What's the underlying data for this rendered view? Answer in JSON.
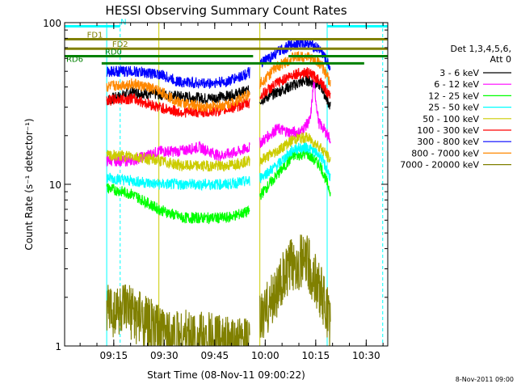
{
  "chart_data": {
    "type": "line",
    "title": "HESSI Observing Summary Count Rates",
    "xlabel": "Start Time (08-Nov-11 09:00:22)",
    "ylabel": "Count Rate (s⁻¹ detector⁻¹)",
    "yscale": "log",
    "ylim": [
      1,
      100
    ],
    "xlim_minutes": [
      0,
      96
    ],
    "y_ticks": [
      {
        "v": 1,
        "label": "1"
      },
      {
        "v": 10,
        "label": "10"
      },
      {
        "v": 100,
        "label": "100"
      }
    ],
    "x_ticks": [
      {
        "m": 14.6,
        "label": "09:15"
      },
      {
        "m": 29.6,
        "label": "09:30"
      },
      {
        "m": 44.6,
        "label": "09:45"
      },
      {
        "m": 59.6,
        "label": "10:00"
      },
      {
        "m": 74.6,
        "label": "10:15"
      },
      {
        "m": 89.6,
        "label": "10:30"
      }
    ],
    "grid": false,
    "legend_position": "right",
    "legend_header": [
      "Det 1,3,4,5,6,",
      "Att 0"
    ],
    "footer": "8-Nov-2011 09:00",
    "segments": [
      [
        12.5,
        55.0
      ],
      [
        58.0,
        79.0
      ]
    ],
    "series": [
      {
        "name": "3 - 6 keV",
        "color": "#000000",
        "values": [
          {
            "x": 12.5,
            "y": 33
          },
          {
            "x": 20,
            "y": 37
          },
          {
            "x": 28,
            "y": 36
          },
          {
            "x": 34,
            "y": 35
          },
          {
            "x": 42,
            "y": 34
          },
          {
            "x": 48,
            "y": 35
          },
          {
            "x": 55,
            "y": 38
          },
          {
            "x": 58,
            "y": 33
          },
          {
            "x": 63,
            "y": 37
          },
          {
            "x": 68,
            "y": 41
          },
          {
            "x": 72,
            "y": 44
          },
          {
            "x": 76,
            "y": 41
          },
          {
            "x": 79,
            "y": 30
          }
        ]
      },
      {
        "name": "6 - 12 keV",
        "color": "#ff00ff",
        "values": [
          {
            "x": 12.5,
            "y": 14
          },
          {
            "x": 20,
            "y": 14
          },
          {
            "x": 28,
            "y": 16
          },
          {
            "x": 34,
            "y": 16
          },
          {
            "x": 40,
            "y": 17
          },
          {
            "x": 46,
            "y": 15
          },
          {
            "x": 52,
            "y": 16
          },
          {
            "x": 55,
            "y": 17
          },
          {
            "x": 58,
            "y": 18
          },
          {
            "x": 63,
            "y": 22
          },
          {
            "x": 67,
            "y": 21
          },
          {
            "x": 70,
            "y": 21
          },
          {
            "x": 73,
            "y": 25
          },
          {
            "x": 74,
            "y": 43
          },
          {
            "x": 75.5,
            "y": 24
          },
          {
            "x": 77,
            "y": 22
          },
          {
            "x": 79,
            "y": 19
          }
        ]
      },
      {
        "name": "12 - 25 keV",
        "color": "#00ff00",
        "values": [
          {
            "x": 12.5,
            "y": 9.5
          },
          {
            "x": 20,
            "y": 8.7
          },
          {
            "x": 28,
            "y": 7
          },
          {
            "x": 35,
            "y": 6.2
          },
          {
            "x": 42,
            "y": 6.2
          },
          {
            "x": 48,
            "y": 6.2
          },
          {
            "x": 55,
            "y": 6.8
          },
          {
            "x": 58,
            "y": 8.5
          },
          {
            "x": 64,
            "y": 12
          },
          {
            "x": 68,
            "y": 15
          },
          {
            "x": 72,
            "y": 15.5
          },
          {
            "x": 76,
            "y": 13
          },
          {
            "x": 79,
            "y": 9
          }
        ]
      },
      {
        "name": "25 - 50 keV",
        "color": "#00ffff",
        "values": [
          {
            "x": 12.5,
            "y": 11
          },
          {
            "x": 20,
            "y": 10.5
          },
          {
            "x": 28,
            "y": 10
          },
          {
            "x": 35,
            "y": 10
          },
          {
            "x": 42,
            "y": 10
          },
          {
            "x": 48,
            "y": 10
          },
          {
            "x": 55,
            "y": 10.5
          },
          {
            "x": 58,
            "y": 11
          },
          {
            "x": 63,
            "y": 13
          },
          {
            "x": 68,
            "y": 16.5
          },
          {
            "x": 72,
            "y": 17
          },
          {
            "x": 76,
            "y": 15
          },
          {
            "x": 79,
            "y": 11
          }
        ]
      },
      {
        "name": "50 - 100 keV",
        "color": "#cccc00",
        "values": [
          {
            "x": 12.5,
            "y": 15
          },
          {
            "x": 20,
            "y": 15
          },
          {
            "x": 28,
            "y": 14
          },
          {
            "x": 35,
            "y": 13
          },
          {
            "x": 42,
            "y": 13
          },
          {
            "x": 48,
            "y": 13
          },
          {
            "x": 55,
            "y": 14
          },
          {
            "x": 58,
            "y": 14
          },
          {
            "x": 63,
            "y": 16
          },
          {
            "x": 68,
            "y": 19
          },
          {
            "x": 72,
            "y": 19.5
          },
          {
            "x": 76,
            "y": 17
          },
          {
            "x": 79,
            "y": 14
          }
        ]
      },
      {
        "name": "100 - 300 keV",
        "color": "#ff0000",
        "values": [
          {
            "x": 12.5,
            "y": 33
          },
          {
            "x": 20,
            "y": 34
          },
          {
            "x": 28,
            "y": 30
          },
          {
            "x": 34,
            "y": 28
          },
          {
            "x": 42,
            "y": 28
          },
          {
            "x": 48,
            "y": 29
          },
          {
            "x": 55,
            "y": 32
          },
          {
            "x": 58,
            "y": 35
          },
          {
            "x": 63,
            "y": 42
          },
          {
            "x": 68,
            "y": 48
          },
          {
            "x": 72,
            "y": 49
          },
          {
            "x": 76,
            "y": 44
          },
          {
            "x": 79,
            "y": 34
          }
        ]
      },
      {
        "name": "300 - 800 keV",
        "color": "#0000ff",
        "values": [
          {
            "x": 12.5,
            "y": 50
          },
          {
            "x": 20,
            "y": 50
          },
          {
            "x": 28,
            "y": 48
          },
          {
            "x": 34,
            "y": 43
          },
          {
            "x": 42,
            "y": 42
          },
          {
            "x": 48,
            "y": 43
          },
          {
            "x": 55,
            "y": 49
          },
          {
            "x": 58,
            "y": 55
          },
          {
            "x": 63,
            "y": 65
          },
          {
            "x": 68,
            "y": 74
          },
          {
            "x": 72,
            "y": 75
          },
          {
            "x": 76,
            "y": 68
          },
          {
            "x": 79,
            "y": 52
          }
        ]
      },
      {
        "name": "800 - 7000 keV",
        "color": "#ff8800",
        "values": [
          {
            "x": 12.5,
            "y": 40
          },
          {
            "x": 20,
            "y": 42
          },
          {
            "x": 28,
            "y": 38
          },
          {
            "x": 34,
            "y": 32
          },
          {
            "x": 42,
            "y": 30
          },
          {
            "x": 48,
            "y": 31
          },
          {
            "x": 55,
            "y": 36
          },
          {
            "x": 58,
            "y": 42
          },
          {
            "x": 63,
            "y": 53
          },
          {
            "x": 68,
            "y": 61
          },
          {
            "x": 72,
            "y": 62
          },
          {
            "x": 76,
            "y": 56
          },
          {
            "x": 79,
            "y": 42
          }
        ]
      },
      {
        "name": "7000 - 20000 keV",
        "color": "#808000",
        "values": [
          {
            "x": 12.5,
            "y": 1.7
          },
          {
            "x": 20,
            "y": 1.6
          },
          {
            "x": 24,
            "y": 1.4
          },
          {
            "x": 28,
            "y": 1.2
          },
          {
            "x": 55,
            "y": 1.0
          },
          {
            "x": 58,
            "y": 1.4
          },
          {
            "x": 63,
            "y": 2.2
          },
          {
            "x": 68,
            "y": 3.3
          },
          {
            "x": 72,
            "y": 3.3
          },
          {
            "x": 76,
            "y": 2.2
          },
          {
            "x": 79,
            "y": 1.4
          }
        ]
      }
    ],
    "flag_bars": [
      {
        "label": "N",
        "color": "#00ffff",
        "label_at": 17.5,
        "y": 95,
        "ranges": [
          [
            0,
            16.5
          ],
          [
            78,
            96
          ]
        ]
      },
      {
        "label": "FD1",
        "color": "#808000",
        "label_at": 9,
        "y": 79,
        "ranges": [
          [
            0,
            96
          ]
        ]
      },
      {
        "label": "FD2",
        "color": "#808000",
        "label_at": 16.5,
        "y": 69,
        "ranges": [
          [
            0,
            96
          ]
        ]
      },
      {
        "label": "RD0",
        "color": "#008000",
        "label_at": 14.5,
        "y": 62,
        "ranges": [
          [
            0,
            56
          ],
          [
            66.5,
            96
          ]
        ]
      },
      {
        "label": "RD6",
        "color": "#008000",
        "label_at": 3,
        "y": 56,
        "ranges": [
          [
            11,
            89
          ]
        ]
      }
    ],
    "vlines": [
      {
        "x": 12.5,
        "color": "#00ffff",
        "dashed": false
      },
      {
        "x": 16.5,
        "color": "#00ffff",
        "dashed": true
      },
      {
        "x": 28,
        "color": "#cccc00",
        "dashed": false
      },
      {
        "x": 58,
        "color": "#cccc00",
        "dashed": false
      },
      {
        "x": 78,
        "color": "#00ffff",
        "dashed": false
      },
      {
        "x": 94.5,
        "color": "#00ffff",
        "dashed": true
      }
    ]
  }
}
